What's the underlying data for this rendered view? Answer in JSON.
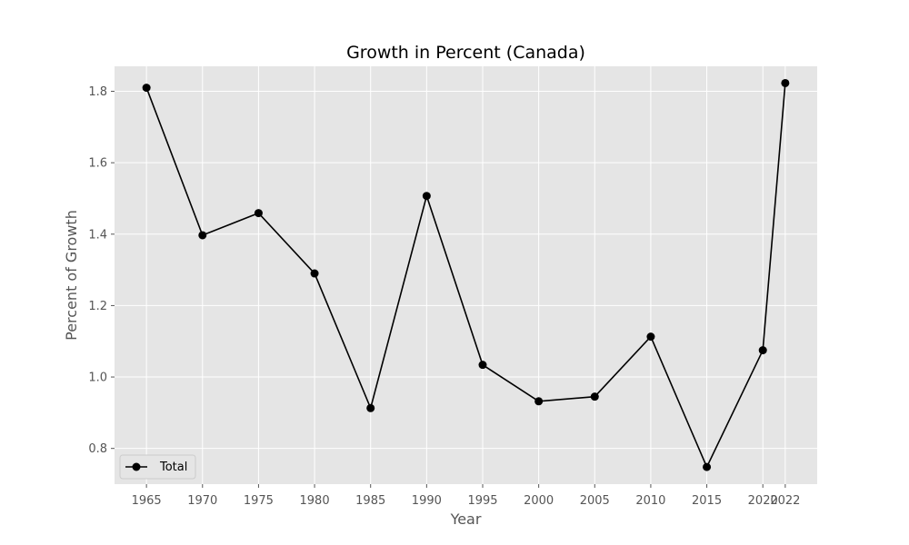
{
  "chart_data": {
    "type": "line",
    "title": "Growth in Percent (Canada)",
    "xlabel": "Year",
    "ylabel": "Percent of Growth",
    "categories": [
      "1965",
      "1970",
      "1975",
      "1980",
      "1985",
      "1990",
      "1995",
      "2000",
      "2005",
      "2010",
      "2015",
      "2020",
      "2022"
    ],
    "series": [
      {
        "name": "Total",
        "values": [
          1.81,
          1.397,
          1.459,
          1.29,
          0.913,
          1.507,
          1.034,
          0.932,
          0.945,
          1.113,
          0.748,
          1.075,
          1.823
        ]
      }
    ],
    "ylim": [
      0.7,
      1.87
    ],
    "yticks": [
      0.8,
      1.0,
      1.2,
      1.4,
      1.6,
      1.8
    ],
    "ytick_labels": [
      "0.8",
      "1.0",
      "1.2",
      "1.4",
      "1.6",
      "1.8"
    ],
    "grid": true,
    "legend_position": "lower-left",
    "colors": {
      "background": "#e5e5e5",
      "grid": "#ffffff",
      "line": "#000000",
      "text": "#555555"
    }
  }
}
